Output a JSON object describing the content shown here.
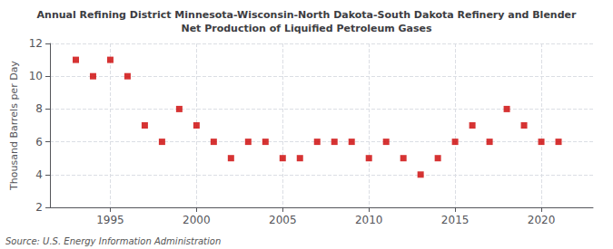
{
  "chart_data": {
    "type": "scatter",
    "title": "Annual Refining District Minnesota-Wisconsin-North Dakota-South Dakota Refinery and Blender\nNet Production of Liquified Petroleum Gases",
    "ylabel": "Thousand Barrels per Day",
    "annotation": "Source: U.S. Energy Information Administration",
    "x": [
      1993,
      1994,
      1995,
      1996,
      1997,
      1998,
      1999,
      2000,
      2001,
      2002,
      2003,
      2004,
      2005,
      2006,
      2007,
      2008,
      2009,
      2010,
      2011,
      2012,
      2013,
      2014,
      2015,
      2016,
      2017,
      2018,
      2019,
      2020,
      2021
    ],
    "values": [
      11,
      10,
      11,
      10,
      7,
      6,
      8,
      7,
      6,
      5,
      6,
      6,
      5,
      5,
      6,
      6,
      6,
      5,
      6,
      5,
      4,
      5,
      6,
      7,
      6,
      8,
      7,
      6,
      6
    ],
    "color": "#cc0000",
    "marker": "square",
    "xlim": [
      1991.5,
      2023
    ],
    "xticks": [
      1995,
      2000,
      2005,
      2010,
      2015,
      2020
    ],
    "ylim": [
      2,
      12
    ],
    "yticks": [
      2,
      4,
      6,
      8,
      10,
      12
    ],
    "grid": true
  }
}
